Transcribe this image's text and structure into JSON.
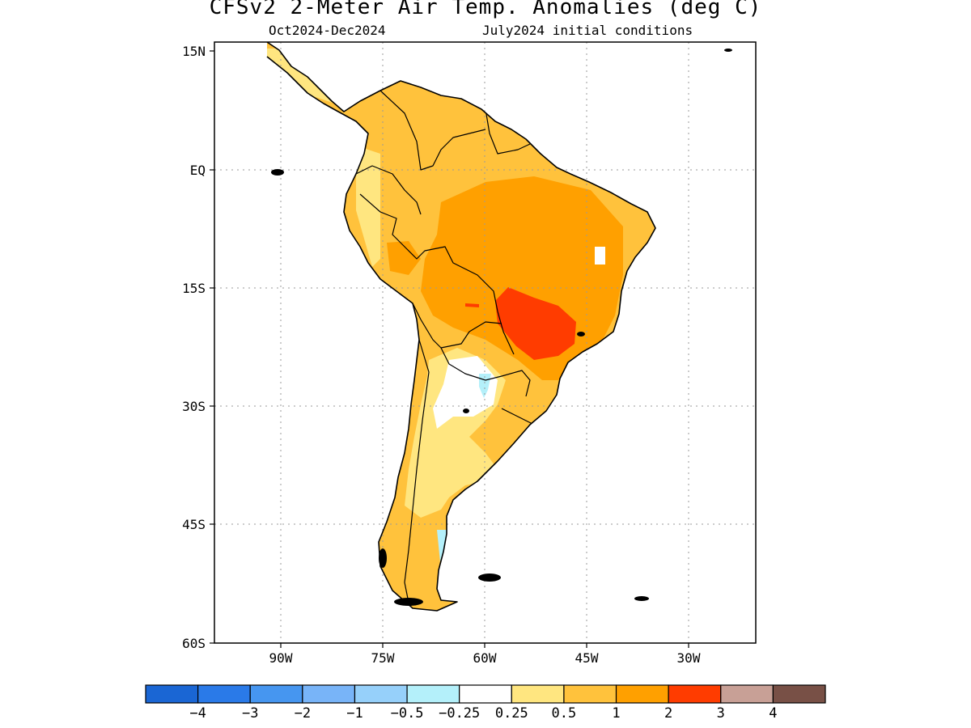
{
  "title": "CFSv2 2-Meter Air Temp. Anomalies (deg C)",
  "subtitle_left": "Oct2024-Dec2024",
  "subtitle_right": "July2024 initial conditions",
  "lat_labels": [
    "15N",
    "EQ",
    "15S",
    "30S",
    "45S",
    "60S"
  ],
  "lon_labels": [
    "90W",
    "75W",
    "60W",
    "45W",
    "30W"
  ],
  "colorbar": {
    "colors": [
      "#1a66d4",
      "#2a7ae8",
      "#4696f0",
      "#78b4f8",
      "#96d0fa",
      "#b4f0fa",
      "#ffffff",
      "#ffe680",
      "#ffc23c",
      "#ffa000",
      "#ff3c00",
      "#c8a096",
      "#785046"
    ],
    "labels": [
      "-4",
      "-3",
      "-2",
      "-1",
      "-0.5",
      "-0.25",
      "0.25",
      "0.5",
      "1",
      "2",
      "3",
      "4"
    ]
  }
}
